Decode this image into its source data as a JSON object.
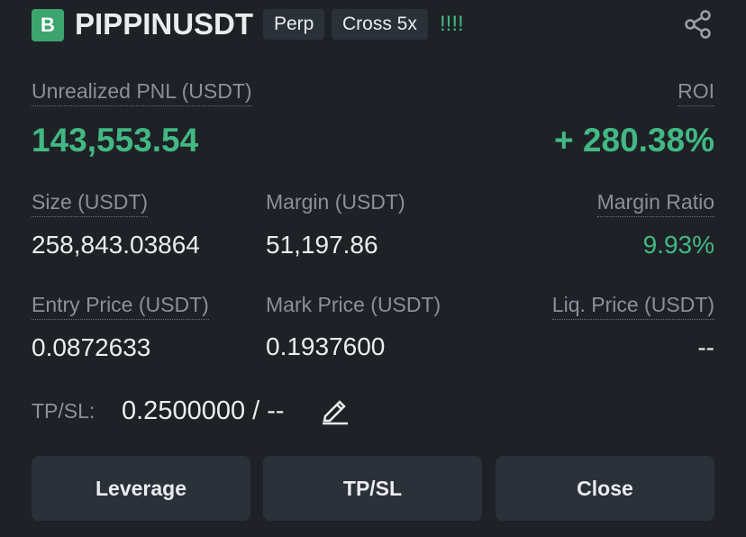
{
  "header": {
    "badge": "B",
    "symbol": "PIPPINUSDT",
    "tags": [
      "Perp",
      "Cross 5x"
    ],
    "signal": "!!!!"
  },
  "pnl": {
    "label": "Unrealized PNL (USDT)",
    "value": "143,553.54"
  },
  "roi": {
    "label": "ROI",
    "value": "+ 280.38%"
  },
  "fields": [
    [
      {
        "label": "Size (USDT)",
        "value": "258,843.03864"
      },
      {
        "label": "Margin (USDT)",
        "value": "51,197.86"
      },
      {
        "label": "Margin Ratio",
        "value": "9.93%"
      }
    ],
    [
      {
        "label": "Entry Price (USDT)",
        "value": "0.0872633"
      },
      {
        "label": "Mark Price (USDT)",
        "value": "0.1937600"
      },
      {
        "label": "Liq. Price (USDT)",
        "value": "--"
      }
    ]
  ],
  "tpsl": {
    "label": "TP/SL:",
    "value": "0.2500000 / --"
  },
  "buttons": [
    "Leverage",
    "TP/SL",
    "Close"
  ]
}
